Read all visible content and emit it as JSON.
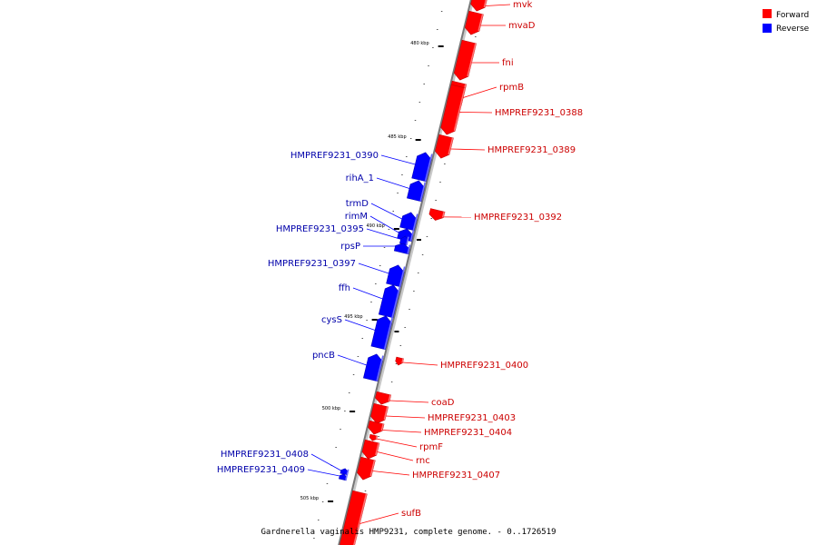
{
  "colors": {
    "forward": "#ff0000",
    "forward_dark": "#c40000",
    "forward_light": "#ff7070",
    "reverse": "#0000ff",
    "reverse_dark": "#0000b8",
    "reverse_light": "#6a6aff",
    "label_forward": "#cc0000",
    "label_reverse": "#0000aa",
    "backbone": "#888888"
  },
  "legend": {
    "forward_label": "Forward",
    "reverse_label": "Reverse"
  },
  "caption": "Gardnerella vaginalis HMP9231, complete genome. - 0..1726519",
  "axis_ticks": [
    "480 kbp",
    "485 kbp",
    "490 kbp",
    "495 kbp",
    "500 kbp",
    "505 kbp"
  ],
  "genes": [
    {
      "name": "mvk",
      "strand": "forward"
    },
    {
      "name": "mvaD",
      "strand": "forward"
    },
    {
      "name": "fni",
      "strand": "forward"
    },
    {
      "name": "rpmB",
      "strand": "forward"
    },
    {
      "name": "HMPREF9231_0388",
      "strand": "forward"
    },
    {
      "name": "HMPREF9231_0389",
      "strand": "forward"
    },
    {
      "name": "HMPREF9231_0390",
      "strand": "reverse"
    },
    {
      "name": "rihA_1",
      "strand": "reverse"
    },
    {
      "name": "HMPREF9231_0392",
      "strand": "forward"
    },
    {
      "name": "trmD",
      "strand": "reverse"
    },
    {
      "name": "rimM",
      "strand": "reverse"
    },
    {
      "name": "HMPREF9231_0395",
      "strand": "reverse"
    },
    {
      "name": "rpsP",
      "strand": "reverse"
    },
    {
      "name": "HMPREF9231_0397",
      "strand": "reverse"
    },
    {
      "name": "ffh",
      "strand": "reverse"
    },
    {
      "name": "cysS",
      "strand": "reverse"
    },
    {
      "name": "pncB",
      "strand": "reverse"
    },
    {
      "name": "HMPREF9231_0400",
      "strand": "forward"
    },
    {
      "name": "coaD",
      "strand": "forward"
    },
    {
      "name": "HMPREF9231_0403",
      "strand": "forward"
    },
    {
      "name": "HMPREF9231_0404",
      "strand": "forward"
    },
    {
      "name": "rpmF",
      "strand": "forward"
    },
    {
      "name": "rnc",
      "strand": "forward"
    },
    {
      "name": "HMPREF9231_0407",
      "strand": "forward"
    },
    {
      "name": "HMPREF9231_0408",
      "strand": "reverse"
    },
    {
      "name": "HMPREF9231_0409",
      "strand": "reverse"
    },
    {
      "name": "sufB",
      "strand": "forward"
    }
  ]
}
